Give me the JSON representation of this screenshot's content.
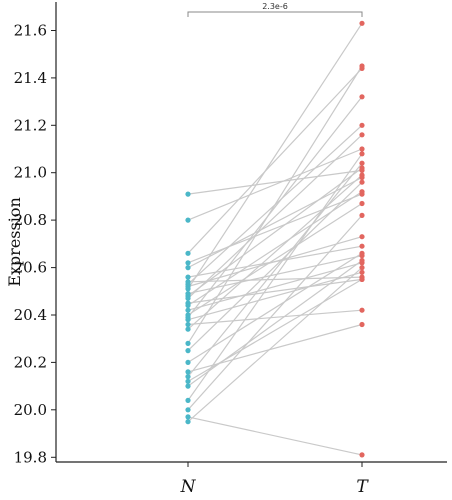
{
  "chart_data": {
    "type": "scatter",
    "title": "",
    "xlabel": "",
    "ylabel": "Expression",
    "categories": [
      "N",
      "T"
    ],
    "ylim": [
      19.78,
      21.72
    ],
    "yticks": [
      19.8,
      20.0,
      20.2,
      20.4,
      20.6,
      20.8,
      21.0,
      21.2,
      21.4,
      21.6
    ],
    "ytick_labels": [
      "19.8",
      "20.0",
      "20.2",
      "20.4",
      "20.6",
      "20.8",
      "21.0",
      "21.2",
      "21.4",
      "21.6"
    ],
    "grid": false,
    "legend": "none",
    "pvalue_label": "2.3e-6",
    "colors": {
      "N": "#4bb7c8",
      "T": "#e2665f",
      "pair_line": "#c9c9c9",
      "bracket": "#888888"
    },
    "pairs": [
      {
        "N": 20.91,
        "T": 21.01
      },
      {
        "N": 20.8,
        "T": 21.1
      },
      {
        "N": 20.66,
        "T": 21.44
      },
      {
        "N": 20.62,
        "T": 20.91
      },
      {
        "N": 20.6,
        "T": 20.98
      },
      {
        "N": 20.56,
        "T": 20.69
      },
      {
        "N": 20.54,
        "T": 20.56
      },
      {
        "N": 20.53,
        "T": 21.2
      },
      {
        "N": 20.52,
        "T": 20.73
      },
      {
        "N": 20.51,
        "T": 21.63
      },
      {
        "N": 20.49,
        "T": 20.65
      },
      {
        "N": 20.48,
        "T": 21.02
      },
      {
        "N": 20.47,
        "T": 21.16
      },
      {
        "N": 20.45,
        "T": 20.55
      },
      {
        "N": 20.44,
        "T": 20.92
      },
      {
        "N": 20.42,
        "T": 20.62
      },
      {
        "N": 20.4,
        "T": 20.87
      },
      {
        "N": 20.39,
        "T": 21.32
      },
      {
        "N": 20.38,
        "T": 20.58
      },
      {
        "N": 20.36,
        "T": 20.42
      },
      {
        "N": 20.34,
        "T": 20.99
      },
      {
        "N": 20.28,
        "T": 21.45
      },
      {
        "N": 20.25,
        "T": 20.96
      },
      {
        "N": 20.2,
        "T": 20.66
      },
      {
        "N": 20.16,
        "T": 20.36
      },
      {
        "N": 20.14,
        "T": 21.04
      },
      {
        "N": 20.12,
        "T": 20.55
      },
      {
        "N": 20.1,
        "T": 20.63
      },
      {
        "N": 20.04,
        "T": 21.08
      },
      {
        "N": 20.0,
        "T": 20.82
      },
      {
        "N": 19.97,
        "T": 19.81
      },
      {
        "N": 19.95,
        "T": 20.6
      }
    ]
  }
}
